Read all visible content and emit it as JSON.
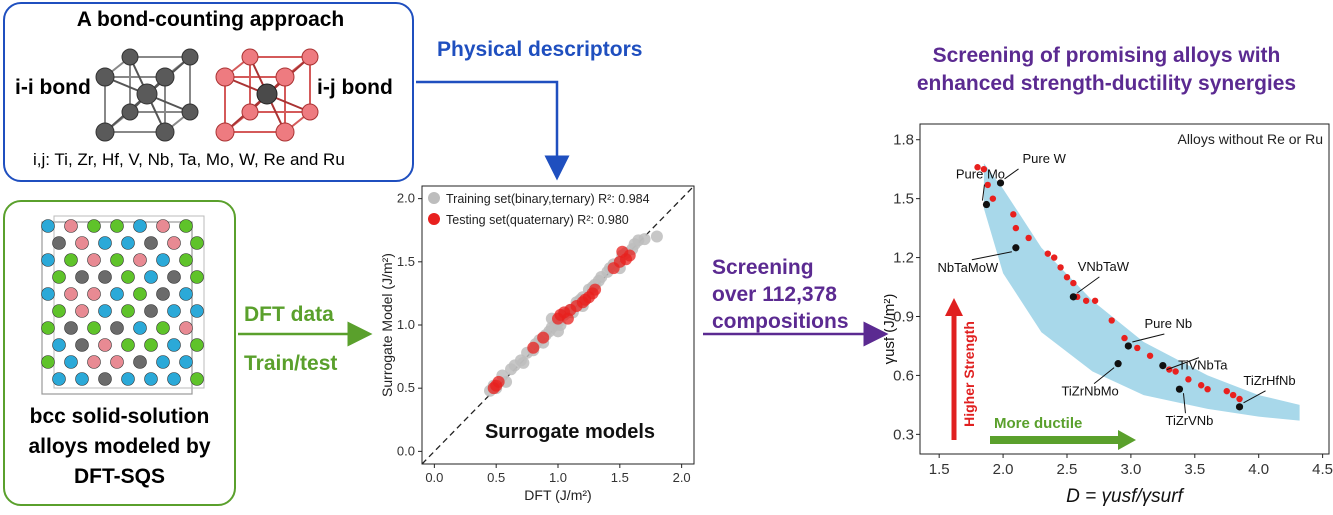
{
  "bond_panel": {
    "title": "A bond-counting approach",
    "ii_label": "i-i bond",
    "ij_label": "i-j bond",
    "elements_line": "i,j: Ti, Zr, Hf, V, Nb, Ta, Mo, W, Re and Ru"
  },
  "bcc_panel": {
    "caption_lines": [
      "bcc solid-solution",
      "alloys modeled by",
      "DFT-SQS"
    ]
  },
  "arrows": {
    "physical_descriptors": "Physical descriptors",
    "dft_data": "DFT data",
    "train_test": "Train/test",
    "screening_lines": [
      "Screening",
      "over 112,378",
      "compositions"
    ]
  },
  "screening_title": [
    "Screening of promising alloys with",
    "enhanced strength-ductility synergies"
  ],
  "colors": {
    "blue_arrow": "#1f4fbf",
    "green": "#5aa02c",
    "purple": "#5b2a91",
    "red_arrow": "#e02020",
    "band": "#a8d8ea",
    "training": "#bdbdbd",
    "testing": "#e8201e"
  },
  "chart_data": [
    {
      "type": "scatter",
      "title": "Surrogate models",
      "xlabel": "DFT (J/m²)",
      "ylabel": "Surrogate Model (J/m²)",
      "xlim": [
        -0.1,
        2.1
      ],
      "ylim": [
        -0.1,
        2.1
      ],
      "xticks": [
        "0.0",
        "0.5",
        "1.0",
        "1.5",
        "2.0"
      ],
      "yticks": [
        "0.0",
        "0.5",
        "1.0",
        "1.5",
        "2.0"
      ],
      "legend_position": "top-left",
      "series": [
        {
          "name": "Training set(binary,ternary) R²: 0.984",
          "points": [
            [
              0.45,
              0.48
            ],
            [
              0.48,
              0.52
            ],
            [
              0.5,
              0.5
            ],
            [
              0.55,
              0.6
            ],
            [
              0.58,
              0.55
            ],
            [
              0.62,
              0.65
            ],
            [
              0.65,
              0.68
            ],
            [
              0.7,
              0.72
            ],
            [
              0.72,
              0.7
            ],
            [
              0.75,
              0.78
            ],
            [
              0.8,
              0.8
            ],
            [
              0.82,
              0.85
            ],
            [
              0.85,
              0.88
            ],
            [
              0.88,
              0.86
            ],
            [
              0.9,
              0.92
            ],
            [
              0.93,
              0.95
            ],
            [
              0.95,
              0.98
            ],
            [
              0.98,
              1.0
            ],
            [
              1.0,
              1.02
            ],
            [
              1.02,
              1.0
            ],
            [
              1.05,
              1.08
            ],
            [
              1.08,
              1.1
            ],
            [
              1.1,
              1.12
            ],
            [
              1.12,
              1.1
            ],
            [
              1.15,
              1.18
            ],
            [
              1.18,
              1.2
            ],
            [
              1.2,
              1.22
            ],
            [
              1.22,
              1.2
            ],
            [
              1.25,
              1.28
            ],
            [
              1.28,
              1.3
            ],
            [
              1.3,
              1.32
            ],
            [
              1.33,
              1.35
            ],
            [
              1.35,
              1.38
            ],
            [
              1.4,
              1.42
            ],
            [
              1.42,
              1.45
            ],
            [
              1.45,
              1.48
            ],
            [
              1.5,
              1.5
            ],
            [
              1.52,
              1.55
            ],
            [
              1.55,
              1.57
            ],
            [
              1.6,
              1.6
            ],
            [
              1.62,
              1.64
            ],
            [
              1.65,
              1.67
            ],
            [
              1.7,
              1.68
            ],
            [
              1.8,
              1.7
            ],
            [
              1.0,
              0.95
            ],
            [
              0.95,
              1.05
            ],
            [
              1.2,
              1.15
            ],
            [
              1.5,
              1.45
            ]
          ]
        },
        {
          "name": "Testing set(quaternary) R²: 0.980",
          "points": [
            [
              0.48,
              0.5
            ],
            [
              0.52,
              0.55
            ],
            [
              0.5,
              0.52
            ],
            [
              0.8,
              0.82
            ],
            [
              0.88,
              0.9
            ],
            [
              1.0,
              1.05
            ],
            [
              1.02,
              1.08
            ],
            [
              1.05,
              1.1
            ],
            [
              1.08,
              1.05
            ],
            [
              1.1,
              1.12
            ],
            [
              1.15,
              1.15
            ],
            [
              1.2,
              1.18
            ],
            [
              1.22,
              1.2
            ],
            [
              1.25,
              1.22
            ],
            [
              1.28,
              1.25
            ],
            [
              1.3,
              1.28
            ],
            [
              1.45,
              1.45
            ],
            [
              1.5,
              1.5
            ],
            [
              1.55,
              1.52
            ],
            [
              1.58,
              1.55
            ],
            [
              1.52,
              1.58
            ]
          ]
        }
      ],
      "reference_line": "y = x"
    },
    {
      "type": "scatter",
      "annotation_box": "Alloys without Re or Ru",
      "xlabel": "D = γusf/γsurf",
      "ylabel": "γusf (J/m²)",
      "xlim": [
        1.35,
        4.55
      ],
      "ylim": [
        0.2,
        1.88
      ],
      "xticks": [
        "1.5",
        "2.0",
        "2.5",
        "3.0",
        "3.5",
        "4.0",
        "4.5"
      ],
      "yticks": [
        "0.3",
        "0.6",
        "0.9",
        "1.2",
        "1.5",
        "1.8"
      ],
      "band": {
        "upper": [
          [
            1.85,
            1.68
          ],
          [
            2.0,
            1.55
          ],
          [
            2.3,
            1.25
          ],
          [
            2.7,
            0.98
          ],
          [
            3.1,
            0.77
          ],
          [
            3.6,
            0.6
          ],
          [
            4.0,
            0.5
          ],
          [
            4.32,
            0.45
          ]
        ],
        "lower": [
          [
            4.32,
            0.37
          ],
          [
            4.0,
            0.39
          ],
          [
            3.6,
            0.43
          ],
          [
            3.1,
            0.5
          ],
          [
            2.7,
            0.62
          ],
          [
            2.3,
            0.82
          ],
          [
            2.0,
            1.12
          ],
          [
            1.85,
            1.45
          ]
        ]
      },
      "red_points": [
        [
          1.8,
          1.66
        ],
        [
          1.85,
          1.65
        ],
        [
          1.88,
          1.57
        ],
        [
          1.92,
          1.5
        ],
        [
          2.08,
          1.42
        ],
        [
          2.1,
          1.35
        ],
        [
          2.2,
          1.3
        ],
        [
          2.35,
          1.22
        ],
        [
          2.4,
          1.2
        ],
        [
          2.45,
          1.15
        ],
        [
          2.5,
          1.1
        ],
        [
          2.55,
          1.07
        ],
        [
          2.58,
          1.0
        ],
        [
          2.65,
          0.98
        ],
        [
          2.72,
          0.98
        ],
        [
          2.85,
          0.88
        ],
        [
          2.95,
          0.79
        ],
        [
          3.05,
          0.74
        ],
        [
          3.15,
          0.7
        ],
        [
          3.25,
          0.65
        ],
        [
          3.3,
          0.63
        ],
        [
          3.35,
          0.62
        ],
        [
          3.45,
          0.58
        ],
        [
          3.55,
          0.55
        ],
        [
          3.6,
          0.53
        ],
        [
          3.75,
          0.52
        ],
        [
          3.8,
          0.5
        ],
        [
          3.85,
          0.48
        ]
      ],
      "labeled_alloys": [
        {
          "name": "Pure W",
          "x": 1.98,
          "y": 1.58
        },
        {
          "name": "Pure Mo",
          "x": 1.87,
          "y": 1.47
        },
        {
          "name": "NbTaMoW",
          "x": 2.1,
          "y": 1.25
        },
        {
          "name": "VNbTaW",
          "x": 2.55,
          "y": 1.0
        },
        {
          "name": "Pure Nb",
          "x": 2.98,
          "y": 0.75
        },
        {
          "name": "TiVNbTa",
          "x": 3.25,
          "y": 0.65
        },
        {
          "name": "TiZrNbMo",
          "x": 2.9,
          "y": 0.66
        },
        {
          "name": "TiZrVNb",
          "x": 3.38,
          "y": 0.53
        },
        {
          "name": "TiZrHfNb",
          "x": 3.85,
          "y": 0.44
        }
      ],
      "higher_strength_label": "Higher Strength",
      "more_ductile_label": "More ductile"
    }
  ]
}
